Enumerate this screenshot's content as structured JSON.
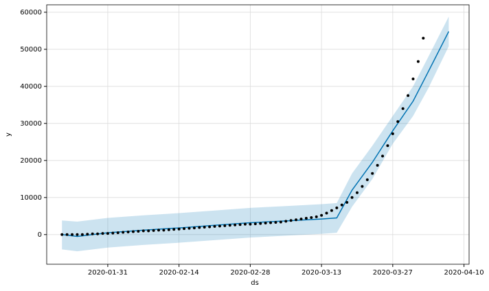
{
  "chart_data": {
    "type": "line",
    "xlabel": "ds",
    "ylabel": "y",
    "xlim": [
      "2020-01-19",
      "2020-04-11"
    ],
    "xticks": [
      "2020-01-31",
      "2020-02-14",
      "2020-02-28",
      "2020-03-13",
      "2020-03-27",
      "2020-04-10"
    ],
    "ylim": [
      -8000,
      62000
    ],
    "yticks": [
      0,
      10000,
      20000,
      30000,
      40000,
      50000,
      60000
    ],
    "grid": true,
    "series": [
      {
        "type": "scatter",
        "color": "#000000",
        "x": [
          "2020-01-22",
          "2020-01-23",
          "2020-01-24",
          "2020-01-25",
          "2020-01-26",
          "2020-01-27",
          "2020-01-28",
          "2020-01-29",
          "2020-01-30",
          "2020-01-31",
          "2020-02-01",
          "2020-02-02",
          "2020-02-03",
          "2020-02-04",
          "2020-02-05",
          "2020-02-06",
          "2020-02-07",
          "2020-02-08",
          "2020-02-09",
          "2020-02-10",
          "2020-02-11",
          "2020-02-12",
          "2020-02-13",
          "2020-02-14",
          "2020-02-15",
          "2020-02-16",
          "2020-02-17",
          "2020-02-18",
          "2020-02-19",
          "2020-02-20",
          "2020-02-21",
          "2020-02-22",
          "2020-02-23",
          "2020-02-24",
          "2020-02-25",
          "2020-02-26",
          "2020-02-27",
          "2020-02-28",
          "2020-02-29",
          "2020-03-01",
          "2020-03-02",
          "2020-03-03",
          "2020-03-04",
          "2020-03-05",
          "2020-03-06",
          "2020-03-07",
          "2020-03-08",
          "2020-03-09",
          "2020-03-10",
          "2020-03-11",
          "2020-03-12",
          "2020-03-13",
          "2020-03-14",
          "2020-03-15",
          "2020-03-16",
          "2020-03-17",
          "2020-03-18",
          "2020-03-19",
          "2020-03-20",
          "2020-03-21",
          "2020-03-22",
          "2020-03-23",
          "2020-03-24",
          "2020-03-25",
          "2020-03-26",
          "2020-03-27",
          "2020-03-28",
          "2020-03-29",
          "2020-03-30",
          "2020-03-31",
          "2020-04-01",
          "2020-04-02"
        ],
        "values": [
          0,
          0,
          0,
          0,
          0,
          100,
          200,
          200,
          300,
          300,
          400,
          500,
          600,
          700,
          800,
          900,
          1000,
          1000,
          1100,
          1200,
          1200,
          1300,
          1400,
          1500,
          1600,
          1700,
          1800,
          1900,
          2000,
          2100,
          2200,
          2300,
          2400,
          2500,
          2600,
          2700,
          2800,
          2800,
          2900,
          3000,
          3100,
          3200,
          3300,
          3400,
          3600,
          3800,
          4000,
          4200,
          4400,
          4600,
          4800,
          5200,
          5800,
          6500,
          7200,
          8000,
          8700,
          10000,
          11300,
          13000,
          14800,
          16500,
          18700,
          21200,
          24000,
          27200,
          30500,
          34000,
          37500,
          42000,
          46700,
          53000
        ]
      },
      {
        "type": "line",
        "color": "#0072B2",
        "x": [
          "2020-01-22",
          "2020-01-25",
          "2020-01-31",
          "2020-02-07",
          "2020-02-14",
          "2020-02-21",
          "2020-02-28",
          "2020-03-06",
          "2020-03-13",
          "2020-03-16",
          "2020-03-19",
          "2020-03-23",
          "2020-03-27",
          "2020-03-31",
          "2020-04-03",
          "2020-04-07"
        ],
        "values": [
          0,
          -500,
          500,
          1200,
          1800,
          2500,
          3200,
          3700,
          4200,
          4500,
          12000,
          19500,
          28000,
          36000,
          44000,
          54800
        ],
        "lower": [
          -4000,
          -4500,
          -3500,
          -2800,
          -2200,
          -1500,
          -800,
          -300,
          200,
          500,
          7500,
          15000,
          24500,
          32000,
          39500,
          50800
        ],
        "upper": [
          3800,
          3500,
          4500,
          5200,
          5800,
          6500,
          7200,
          7700,
          8200,
          8500,
          16500,
          24000,
          32000,
          40000,
          48000,
          58800
        ]
      }
    ]
  }
}
